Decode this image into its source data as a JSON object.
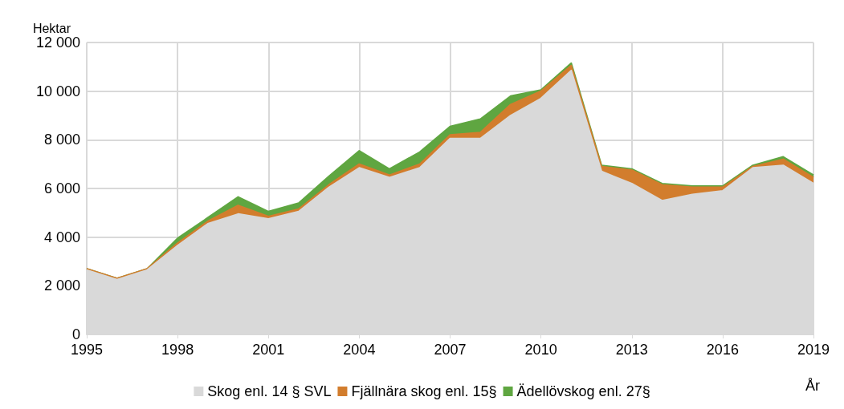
{
  "chart_data": {
    "type": "area",
    "stacked": true,
    "ylabel": "Hektar",
    "xlabel": "År",
    "x": [
      1995,
      1996,
      1997,
      1998,
      1999,
      2000,
      2001,
      2002,
      2003,
      2004,
      2005,
      2006,
      2007,
      2008,
      2009,
      2010,
      2011,
      2012,
      2013,
      2014,
      2015,
      2016,
      2017,
      2018,
      2019
    ],
    "series": [
      {
        "name": "Skog enl. 14 § SVL",
        "color": "#d9d9d9",
        "values": [
          2650,
          2250,
          2650,
          3650,
          4550,
          4950,
          4750,
          5050,
          6050,
          6850,
          6450,
          6850,
          8050,
          8050,
          9000,
          9700,
          10850,
          6700,
          6200,
          5500,
          5750,
          5900,
          6850,
          6950,
          6200
        ]
      },
      {
        "name": "Fjällnära skog enl. 15§",
        "color": "#d27d2d",
        "values": [
          50,
          50,
          50,
          100,
          100,
          350,
          100,
          100,
          100,
          150,
          100,
          150,
          150,
          250,
          450,
          300,
          200,
          200,
          550,
          650,
          300,
          150,
          50,
          250,
          250
        ]
      },
      {
        "name": "Ädellövskog enl. 27§",
        "color": "#5fa641",
        "values": [
          0,
          0,
          0,
          200,
          150,
          350,
          200,
          250,
          350,
          550,
          250,
          500,
          350,
          550,
          350,
          50,
          100,
          50,
          50,
          50,
          50,
          50,
          50,
          100,
          100
        ]
      }
    ],
    "xlim": [
      1995,
      2019
    ],
    "xticks": [
      1995,
      1998,
      2001,
      2004,
      2007,
      2010,
      2013,
      2016,
      2019
    ],
    "ylim": [
      0,
      12000
    ],
    "yticks": [
      0,
      {
        "value": 2000,
        "label": "2 000"
      },
      {
        "value": 4000,
        "label": "4 000"
      },
      {
        "value": 6000,
        "label": "6 000"
      },
      {
        "value": 8000,
        "label": "8 000"
      },
      {
        "value": 10000,
        "label": "10 000"
      },
      {
        "value": 12000,
        "label": "12 000"
      }
    ],
    "grid": true,
    "legend": "bottom"
  }
}
